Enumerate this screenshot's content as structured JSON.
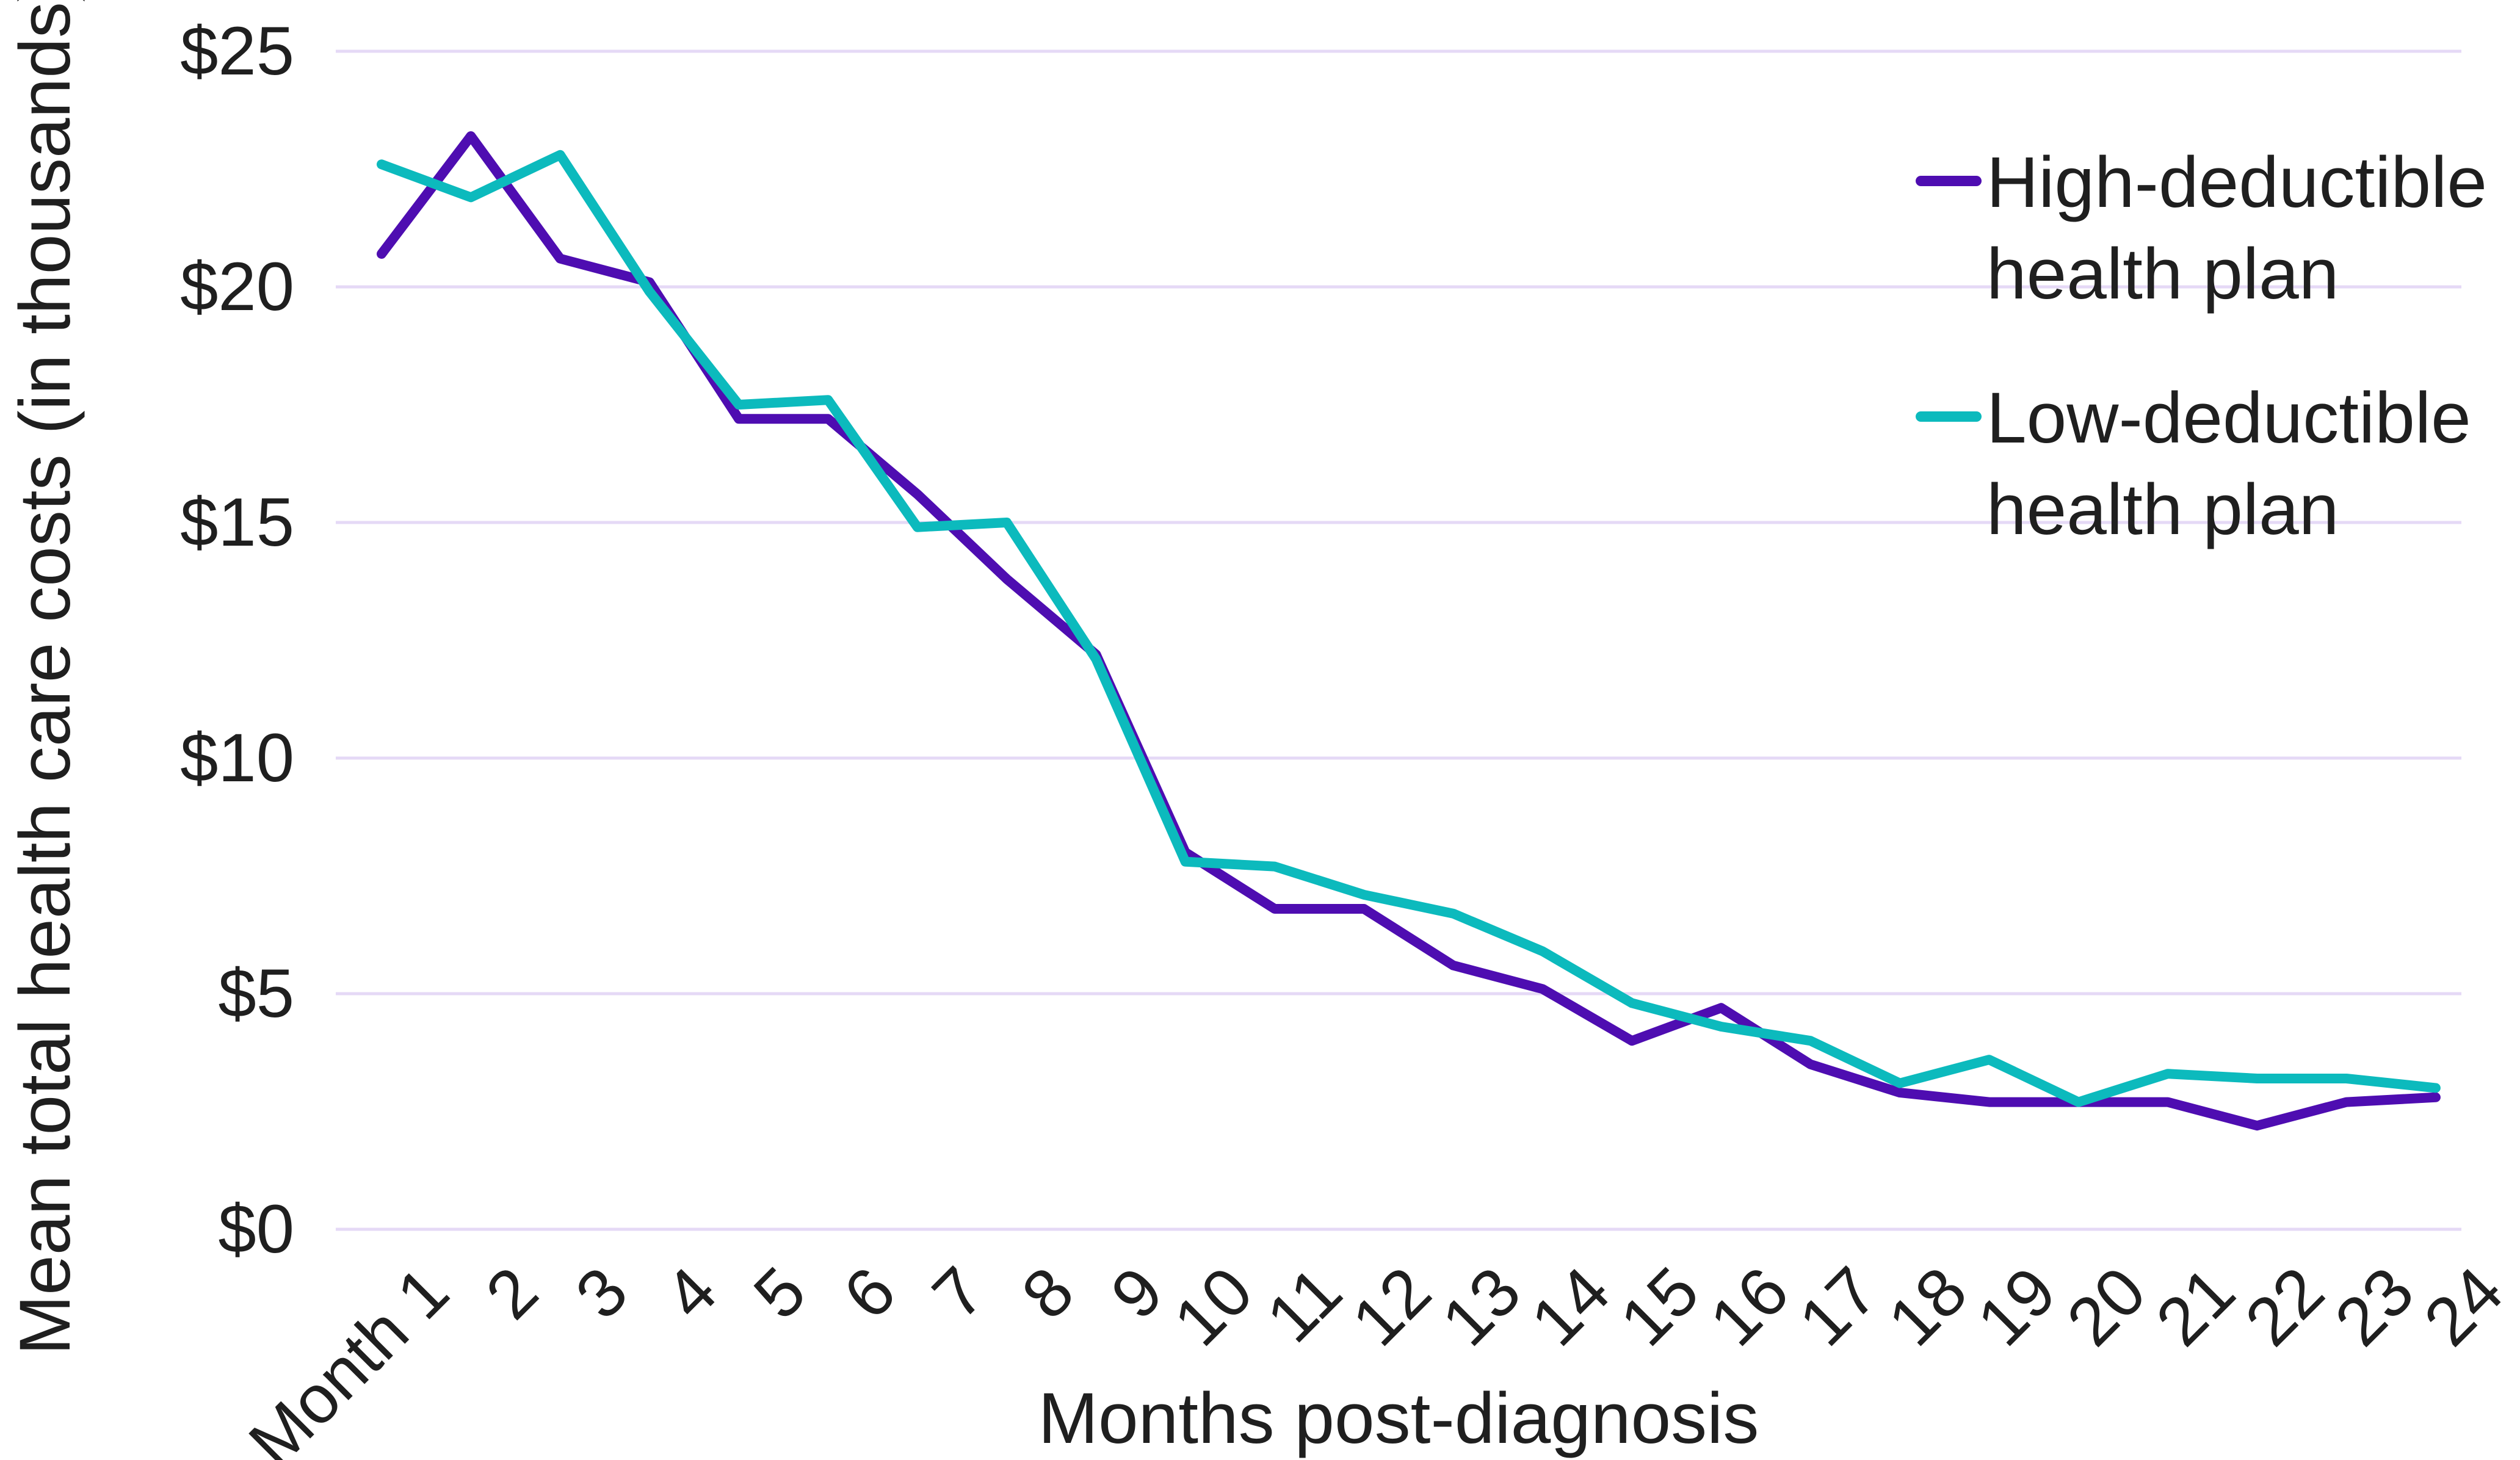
{
  "figure": {
    "y_axis_title": "Mean total health care costs (in thousands)",
    "x_axis_title": "Months post-diagnosis",
    "background_color": "#ffffff",
    "text_color": "#1f1f1f",
    "gridline_color": "#e5d9f6"
  },
  "legend": {
    "position": "top-right",
    "items": [
      {
        "label": "High-deductible health plan",
        "label_lines": [
          "High-deductible",
          "health plan"
        ],
        "color": "#4e0db1",
        "series_key": "hdhp"
      },
      {
        "label": "Low-deductible health plan",
        "label_lines": [
          "Low-deductible",
          "health plan"
        ],
        "color": "#0cbabd",
        "series_key": "ldhp"
      }
    ]
  },
  "chart_data": {
    "type": "line",
    "title": "",
    "xlabel": "Months post-diagnosis",
    "ylabel": "Mean total health care costs (in thousands)",
    "categories": [
      1,
      2,
      3,
      4,
      5,
      6,
      7,
      8,
      9,
      10,
      11,
      12,
      13,
      14,
      15,
      16,
      17,
      18,
      19,
      20,
      21,
      22,
      23,
      24
    ],
    "x_tick_labels": [
      "Month 1",
      "2",
      "3",
      "4",
      "5",
      "6",
      "7",
      "8",
      "9",
      "10",
      "11",
      "12",
      "13",
      "14",
      "15",
      "16",
      "17",
      "18",
      "19",
      "20",
      "21",
      "22",
      "23",
      "24"
    ],
    "y_tick_labels": [
      "$25",
      "$20",
      "$15",
      "$10",
      "$5",
      "$0"
    ],
    "y_tick_values": [
      25,
      20,
      15,
      10,
      5,
      0
    ],
    "ylim": [
      0,
      25
    ],
    "grid": "horizontal",
    "legend_position": "top-right",
    "units": "USD thousands",
    "series": [
      {
        "name": "High-deductible health plan",
        "key": "hdhp",
        "color": "#4e0db1",
        "values": [
          20.7,
          23.2,
          20.6,
          20.1,
          17.2,
          17.2,
          15.6,
          13.8,
          12.2,
          8.0,
          6.8,
          6.8,
          5.6,
          5.1,
          4.0,
          4.7,
          3.5,
          2.9,
          2.7,
          2.7,
          2.7,
          2.2,
          2.7,
          2.8
        ]
      },
      {
        "name": "Low-deductible health plan",
        "key": "ldhp",
        "color": "#0cbabd",
        "values": [
          22.6,
          21.9,
          22.8,
          19.9,
          17.5,
          17.6,
          14.9,
          15.0,
          12.1,
          7.8,
          7.7,
          7.1,
          6.7,
          5.9,
          4.8,
          4.3,
          4.0,
          3.1,
          3.6,
          2.7,
          3.3,
          3.2,
          3.2,
          3.0
        ]
      }
    ]
  }
}
